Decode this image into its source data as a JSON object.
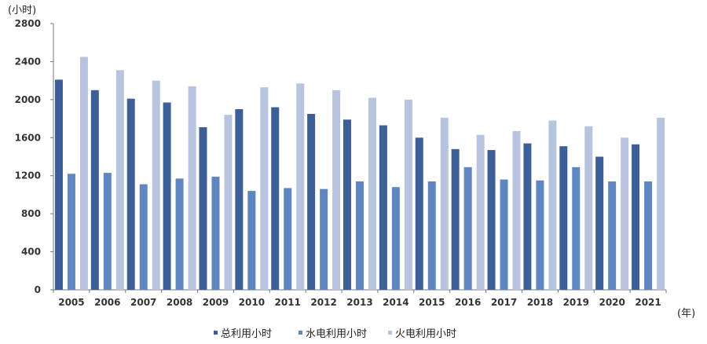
{
  "chart_data": {
    "type": "bar",
    "title": "",
    "y_unit_label": "(小时)",
    "x_unit_label": "(年)",
    "categories": [
      "2005",
      "2006",
      "2007",
      "2008",
      "2009",
      "2010",
      "2011",
      "2012",
      "2013",
      "2014",
      "2015",
      "2016",
      "2017",
      "2018",
      "2019",
      "2020",
      "2021"
    ],
    "ylim": [
      0,
      2800
    ],
    "yticks": [
      "0",
      "400",
      "800",
      "1200",
      "1600",
      "2000",
      "2400",
      "2800"
    ],
    "grid": false,
    "legend_position": "bottom",
    "series": [
      {
        "name": "总利用小时",
        "color": "#3d5f97",
        "values": [
          2210,
          2100,
          2010,
          1970,
          1710,
          1900,
          1920,
          1850,
          1790,
          1730,
          1600,
          1480,
          1470,
          1540,
          1510,
          1400,
          1530
        ]
      },
      {
        "name": "水电利用小时",
        "color": "#5f86c0",
        "values": [
          1220,
          1230,
          1110,
          1170,
          1190,
          1040,
          1070,
          1060,
          1140,
          1080,
          1140,
          1290,
          1160,
          1150,
          1290,
          1140,
          1140
        ]
      },
      {
        "name": "火电利用小时",
        "color": "#b7c3df",
        "values": [
          2450,
          2310,
          2200,
          2140,
          1840,
          2130,
          2170,
          2100,
          2020,
          2000,
          1810,
          1630,
          1670,
          1780,
          1720,
          1600,
          1810
        ]
      }
    ]
  }
}
